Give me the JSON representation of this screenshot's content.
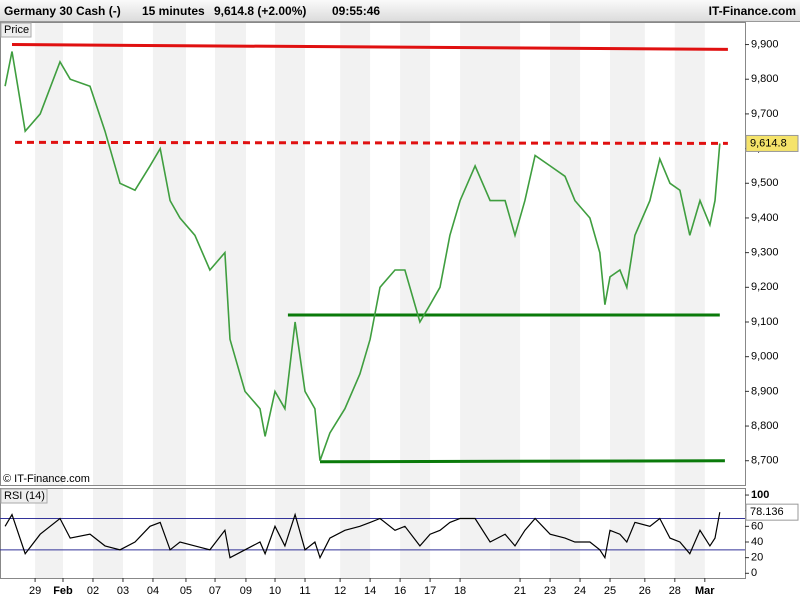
{
  "header": {
    "instrument": "Germany 30 Cash (-)",
    "interval": "15 minutes",
    "quote": "9,614.8 (+2.00%)",
    "time": "09:55:46",
    "brand": "IT-Finance.com"
  },
  "chart_data": [
    {
      "type": "line",
      "title": "Price",
      "credit": "© IT-Finance.com",
      "color": "#3f9e3f",
      "x": [
        -1,
        -0.77,
        -0.33,
        0.17,
        0.83,
        1.17,
        1.83,
        2.33,
        2.83,
        3.33,
        3.83,
        4.17,
        4.5,
        4.83,
        5.33,
        5.83,
        6.33,
        6.5,
        7,
        7.5,
        7.67,
        8,
        8.33,
        8.67,
        9,
        9.33,
        9.5,
        9.83,
        10.33,
        10.83,
        11.17,
        11.5,
        12,
        12.33,
        12.83,
        13.17,
        13.5,
        13.83,
        14.17,
        14.67,
        15.17,
        15.67,
        16,
        16.33,
        16.67,
        17.17,
        17.67,
        18,
        18.5,
        18.83,
        19,
        19.17,
        19.5,
        19.73,
        20,
        20.5,
        20.83,
        21.17,
        21.5,
        21.83,
        22.17,
        22.5,
        22.67,
        22.83
      ],
      "values": [
        9780,
        9880,
        9650,
        9700,
        9850,
        9800,
        9780,
        9650,
        9500,
        9480,
        9550,
        9600,
        9450,
        9400,
        9350,
        9250,
        9300,
        9050,
        8900,
        8850,
        8770,
        8900,
        8850,
        9100,
        8900,
        8850,
        8700,
        8780,
        8850,
        8950,
        9050,
        9200,
        9250,
        9250,
        9100,
        9150,
        9200,
        9350,
        9450,
        9550,
        9450,
        9450,
        9350,
        9450,
        9580,
        9550,
        9520,
        9450,
        9400,
        9300,
        9150,
        9230,
        9250,
        9200,
        9350,
        9450,
        9570,
        9500,
        9480,
        9350,
        9450,
        9380,
        9450,
        9614.8
      ],
      "xlim": [
        -1.17,
        23.67
      ],
      "xticks": [
        {
          "value": 0,
          "label": "29"
        },
        {
          "value": 0.93,
          "label": "Feb"
        },
        {
          "value": 1.93,
          "label": "02"
        },
        {
          "value": 2.93,
          "label": "03"
        },
        {
          "value": 3.93,
          "label": "04"
        },
        {
          "value": 5.03,
          "label": "05"
        },
        {
          "value": 6,
          "label": "07"
        },
        {
          "value": 7.03,
          "label": "09"
        },
        {
          "value": 8,
          "label": "10"
        },
        {
          "value": 9,
          "label": "11"
        },
        {
          "value": 10.17,
          "label": "12"
        },
        {
          "value": 11.17,
          "label": "14"
        },
        {
          "value": 12.17,
          "label": "16"
        },
        {
          "value": 13.17,
          "label": "17"
        },
        {
          "value": 14.17,
          "label": "18"
        },
        {
          "value": 16.17,
          "label": "21"
        },
        {
          "value": 17.17,
          "label": "23"
        },
        {
          "value": 18.17,
          "label": "24"
        },
        {
          "value": 19.17,
          "label": "25"
        },
        {
          "value": 20.33,
          "label": "26"
        },
        {
          "value": 21.33,
          "label": "28"
        },
        {
          "value": 22.33,
          "label": "Mar"
        }
      ],
      "ylim": [
        8630,
        9965
      ],
      "yticks": [
        {
          "value": 8700,
          "label": "8,700"
        },
        {
          "value": 8800,
          "label": "8,800"
        },
        {
          "value": 8900,
          "label": "8,900"
        },
        {
          "value": 9000,
          "label": "9,000"
        },
        {
          "value": 9100,
          "label": "9,100"
        },
        {
          "value": 9200,
          "label": "9,200"
        },
        {
          "value": 9300,
          "label": "9,300"
        },
        {
          "value": 9400,
          "label": "9,400"
        },
        {
          "value": 9500,
          "label": "9,500"
        },
        {
          "value": 9600,
          "label": "9,600"
        },
        {
          "value": 9700,
          "label": "9,700"
        },
        {
          "value": 9800,
          "label": "9,800"
        },
        {
          "value": 9900,
          "label": "9,900"
        }
      ],
      "last_label": {
        "value": 9614.8,
        "label": "9,614.8"
      },
      "lines": [
        {
          "x": [
            -0.77,
            23.1
          ],
          "y": [
            9900,
            9886
          ],
          "color": "#e01010",
          "style": "solid"
        },
        {
          "x": [
            -0.67,
            23.1
          ],
          "y": [
            9618,
            9615
          ],
          "color": "#e01010",
          "style": "dashed"
        },
        {
          "x": [
            8.43,
            22.83
          ],
          "y": [
            9120,
            9120
          ],
          "color": "#0a7a0a",
          "style": "solid"
        },
        {
          "x": [
            9.5,
            23
          ],
          "y": [
            8697,
            8700
          ],
          "color": "#0a7a0a",
          "style": "solid"
        }
      ]
    },
    {
      "type": "line",
      "title": "RSI (14)",
      "color": "#000000",
      "x": [
        -1,
        -0.77,
        -0.33,
        0.17,
        0.83,
        1.17,
        1.83,
        2.33,
        2.83,
        3.33,
        3.83,
        4.17,
        4.5,
        4.83,
        5.33,
        5.83,
        6.33,
        6.5,
        7,
        7.5,
        7.67,
        8,
        8.33,
        8.67,
        9,
        9.33,
        9.5,
        9.83,
        10.33,
        10.83,
        11.17,
        11.5,
        12,
        12.33,
        12.83,
        13.17,
        13.5,
        13.83,
        14.17,
        14.67,
        15.17,
        15.67,
        16,
        16.33,
        16.67,
        17.17,
        17.67,
        18,
        18.5,
        18.83,
        19,
        19.17,
        19.5,
        19.73,
        20,
        20.5,
        20.83,
        21.17,
        21.5,
        21.83,
        22.17,
        22.5,
        22.67,
        22.83
      ],
      "values": [
        60,
        75,
        25,
        50,
        70,
        45,
        50,
        35,
        30,
        40,
        60,
        65,
        30,
        40,
        35,
        30,
        55,
        20,
        30,
        40,
        25,
        60,
        35,
        75,
        30,
        40,
        20,
        45,
        55,
        60,
        65,
        70,
        55,
        60,
        35,
        50,
        55,
        65,
        70,
        70,
        40,
        50,
        35,
        55,
        70,
        50,
        45,
        40,
        40,
        30,
        20,
        55,
        50,
        40,
        65,
        60,
        70,
        45,
        40,
        25,
        55,
        35,
        45,
        78.136
      ],
      "xlim": [
        -1.17,
        23.67
      ],
      "ylim": [
        -6,
        109
      ],
      "yticks": [
        0,
        20,
        40,
        60,
        80,
        100
      ],
      "levels": [
        30,
        70
      ],
      "last_label": {
        "value": 78.136,
        "label": "78.136"
      }
    }
  ]
}
